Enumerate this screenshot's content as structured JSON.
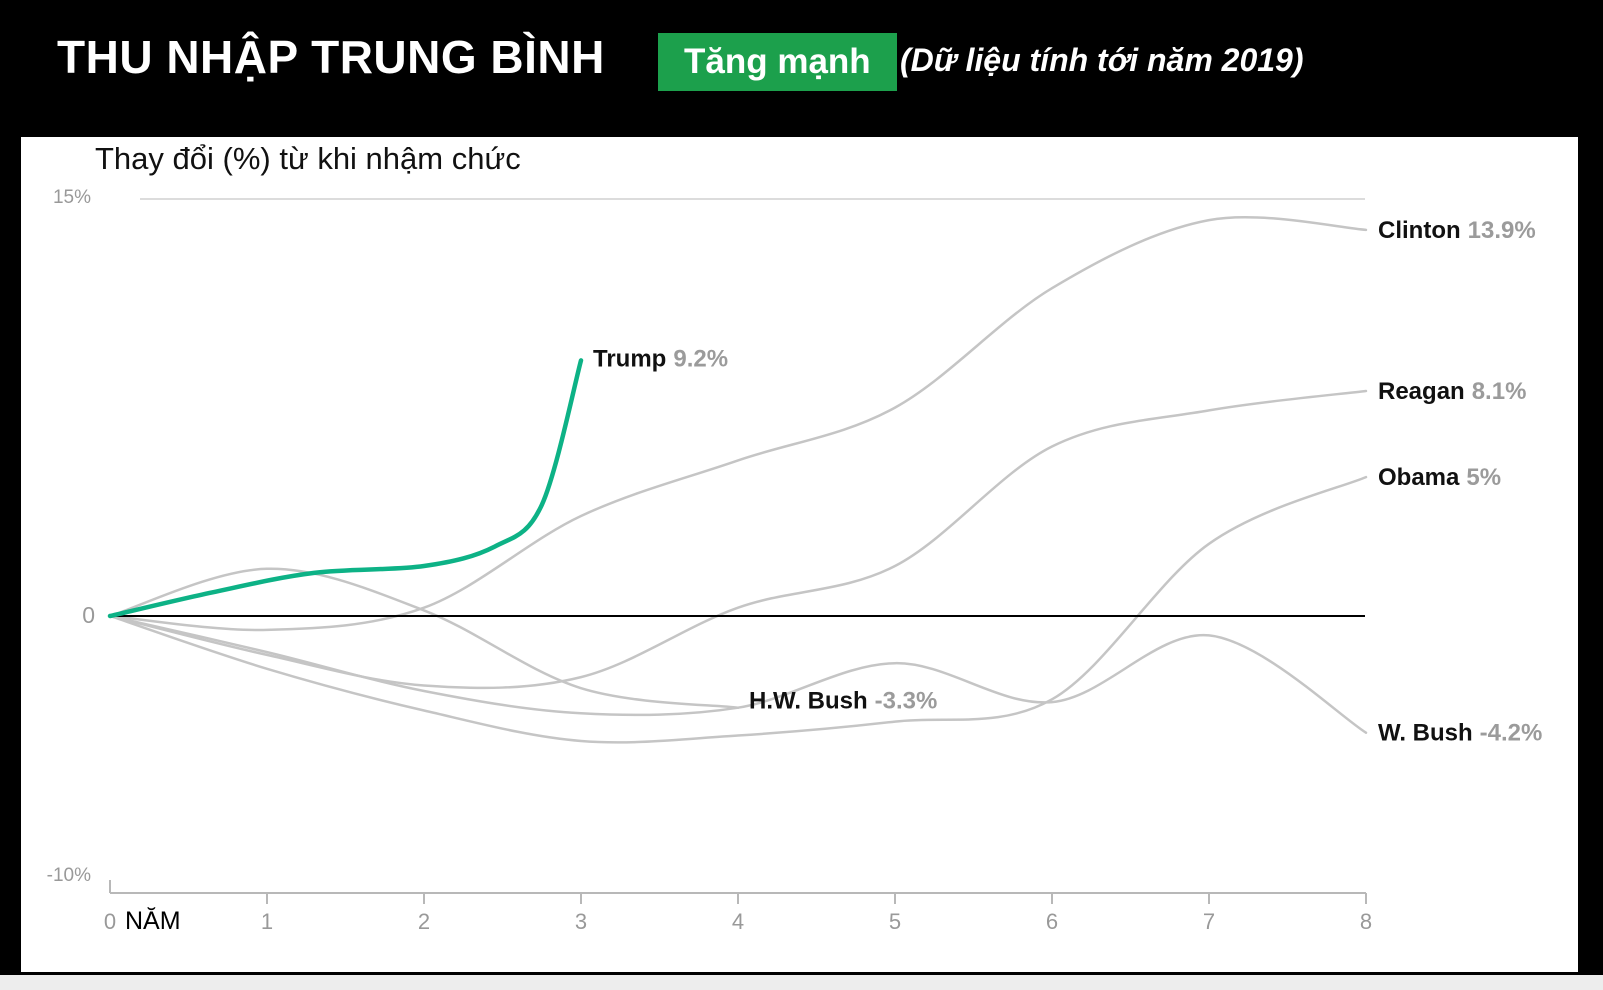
{
  "header": {
    "title": "THU NHẬP TRUNG BÌNH",
    "badge": "Tăng mạnh",
    "note": "(Dữ liệu tính tới năm 2019)"
  },
  "colors": {
    "badge_green": "#1ca04c",
    "trump_green": "#0db286",
    "line_gray": "#c5c5c5",
    "value_gray": "#9b9b9b",
    "name_black": "#111111",
    "axis_gray": "#b8b8b8",
    "tick_text_gray": "#999999",
    "gridline_gray": "#dcdcdc",
    "zero_line_black": "#000000"
  },
  "chart_data": {
    "type": "line",
    "title": "Thay đổi (%) từ khi nhậm chức",
    "xlabel": "NĂM",
    "ylabel": "",
    "x_ticks": [
      "0",
      "1",
      "2",
      "3",
      "4",
      "5",
      "6",
      "7",
      "8"
    ],
    "xlim": [
      0,
      8
    ],
    "ylim": [
      -10,
      15
    ],
    "y_top_label": "15%",
    "y_zero_label": "0",
    "y_bottom_label": "-10%",
    "grid": "top-line-only",
    "legend_position": "end-of-line-labels",
    "series": [
      {
        "id": "clinton",
        "name": "Clinton",
        "display_value": "13.9%",
        "final_value": 13.9,
        "color": "#c5c5c5",
        "emphasis": false,
        "points": [
          [
            0,
            0
          ],
          [
            1,
            -0.5
          ],
          [
            2,
            0.3
          ],
          [
            3,
            3.6
          ],
          [
            4,
            5.6
          ],
          [
            5,
            7.5
          ],
          [
            6,
            11.8
          ],
          [
            7,
            14.25
          ],
          [
            8,
            13.9
          ]
        ]
      },
      {
        "id": "reagan",
        "name": "Reagan",
        "display_value": "8.1%",
        "final_value": 8.1,
        "color": "#c5c5c5",
        "emphasis": false,
        "points": [
          [
            0,
            0
          ],
          [
            1,
            -1.4
          ],
          [
            2,
            -2.5
          ],
          [
            3,
            -2.2
          ],
          [
            4,
            0.3
          ],
          [
            5,
            1.8
          ],
          [
            6,
            6.1
          ],
          [
            7,
            7.4
          ],
          [
            8,
            8.1
          ]
        ]
      },
      {
        "id": "obama",
        "name": "Obama",
        "display_value": "5%",
        "final_value": 5.0,
        "color": "#c5c5c5",
        "emphasis": false,
        "points": [
          [
            0,
            0
          ],
          [
            1,
            -1.9
          ],
          [
            2,
            -3.4
          ],
          [
            3,
            -4.5
          ],
          [
            4,
            -4.3
          ],
          [
            5,
            -3.8
          ],
          [
            6,
            -3.0
          ],
          [
            7,
            2.6
          ],
          [
            8,
            5.0
          ]
        ]
      },
      {
        "id": "wbush",
        "name": "W. Bush",
        "display_value": "-4.2%",
        "final_value": -4.2,
        "color": "#c5c5c5",
        "emphasis": false,
        "points": [
          [
            0,
            0
          ],
          [
            1,
            -1.3
          ],
          [
            2,
            -2.7
          ],
          [
            3,
            -3.5
          ],
          [
            4,
            -3.3
          ],
          [
            5,
            -1.7
          ],
          [
            6,
            -3.1
          ],
          [
            7,
            -0.7
          ],
          [
            8,
            -4.2
          ]
        ]
      },
      {
        "id": "hwbush",
        "name": "H.W. Bush",
        "display_value": "-3.3%",
        "final_value": -3.3,
        "color": "#c5c5c5",
        "emphasis": false,
        "points": [
          [
            0,
            0
          ],
          [
            1,
            1.7
          ],
          [
            2,
            0.2
          ],
          [
            3,
            -2.6
          ],
          [
            4,
            -3.3
          ]
        ]
      },
      {
        "id": "trump",
        "name": "Trump",
        "display_value": "9.2%",
        "final_value": 9.2,
        "color": "#0db286",
        "emphasis": true,
        "points": [
          [
            0,
            0
          ],
          [
            0.65,
            0.85
          ],
          [
            1.3,
            1.55
          ],
          [
            2,
            1.8
          ],
          [
            2.45,
            2.5
          ],
          [
            2.75,
            4.0
          ],
          [
            3,
            9.2
          ]
        ]
      }
    ]
  }
}
